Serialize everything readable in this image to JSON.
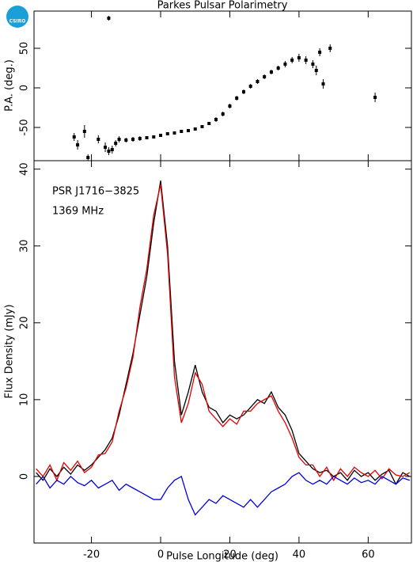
{
  "logo": "CSIRO",
  "chart_data": [
    {
      "type": "scatter",
      "title": "Parkes Pulsar Polarimetry",
      "ylabel": "P.A. (deg.)",
      "x": [
        -25,
        -24,
        -22,
        -21,
        -18,
        -16,
        -15,
        -15,
        -14,
        -13,
        -12,
        -10,
        -8,
        -6,
        -4,
        -2,
        0,
        2,
        4,
        6,
        8,
        10,
        12,
        14,
        16,
        18,
        20,
        22,
        24,
        26,
        28,
        30,
        32,
        34,
        36,
        38,
        40,
        42,
        44,
        45,
        46,
        47,
        49,
        62
      ],
      "y": [
        -62,
        -72,
        -55,
        -88,
        -65,
        -75,
        88,
        -80,
        -78,
        -70,
        -65,
        -66,
        -65,
        -64,
        -63,
        -62,
        -60,
        -58,
        -57,
        -55,
        -54,
        -52,
        -49,
        -45,
        -40,
        -33,
        -23,
        -13,
        -5,
        2,
        8,
        14,
        20,
        25,
        30,
        35,
        38,
        35,
        30,
        22,
        45,
        5,
        50,
        -12
      ],
      "errors": [
        5,
        6,
        8,
        4,
        5,
        6,
        3,
        5,
        5,
        4,
        4,
        3,
        3,
        3,
        2,
        2,
        2,
        2,
        2,
        2,
        2,
        2,
        2,
        2,
        3,
        3,
        3,
        3,
        3,
        3,
        3,
        3,
        3,
        3,
        4,
        4,
        5,
        5,
        5,
        6,
        5,
        6,
        5,
        6
      ],
      "color": "#000000",
      "xlim": [
        -36.6,
        72.5
      ],
      "xticks": [
        -20,
        0,
        20,
        40,
        60
      ],
      "ylim": [
        -92,
        97
      ],
      "yticks": [
        -50,
        0,
        50
      ]
    },
    {
      "type": "line",
      "xlabel": "Pulse Longitude (deg)",
      "ylabel": "Flux Density (mJy)",
      "annotations": [
        "PSR J1716−3825",
        "1369 MHz"
      ],
      "x": [
        -36,
        -34,
        -32,
        -30,
        -28,
        -26,
        -24,
        -22,
        -20,
        -18,
        -16,
        -14,
        -12,
        -10,
        -8,
        -6,
        -4,
        -2,
        0,
        2,
        4,
        6,
        8,
        10,
        12,
        14,
        16,
        18,
        20,
        22,
        24,
        26,
        28,
        30,
        32,
        34,
        36,
        38,
        40,
        42,
        44,
        46,
        48,
        50,
        52,
        54,
        56,
        58,
        60,
        62,
        64,
        66,
        68,
        70,
        72
      ],
      "series": [
        {
          "color": "#000000",
          "values": [
            0.5,
            -0.5,
            1,
            0,
            1.2,
            0.3,
            1.5,
            0.8,
            1.5,
            2.5,
            3.5,
            5,
            8,
            12,
            16,
            21,
            26,
            33,
            38.5,
            30,
            15,
            8,
            11,
            14.5,
            11,
            9,
            8.5,
            7,
            8,
            7.5,
            8,
            9,
            10,
            9.5,
            11,
            9,
            8,
            6,
            3,
            2,
            1,
            0.5,
            0.8,
            0,
            0.5,
            -0.5,
            0.8,
            0,
            0.5,
            -0.5,
            0.3,
            0.8,
            -1,
            0.5,
            0
          ]
        },
        {
          "color": "#e00000",
          "values": [
            1,
            0,
            1.5,
            -0.5,
            1.8,
            0.8,
            2,
            0.5,
            1.2,
            2.8,
            3,
            4.5,
            8.5,
            11.5,
            15.5,
            22,
            27,
            34,
            38,
            29,
            13,
            7,
            9.5,
            13.5,
            12,
            8.5,
            7.5,
            6.5,
            7.5,
            6.8,
            8.5,
            8.5,
            9.5,
            10,
            10.5,
            8.5,
            7,
            5,
            2.5,
            1.5,
            1.5,
            0,
            1.2,
            -0.5,
            1,
            0,
            1.2,
            0.5,
            0,
            0.8,
            -0.3,
            1,
            0.2,
            0,
            0.5
          ]
        },
        {
          "color": "#0000dd",
          "values": [
            -1,
            0,
            -1.5,
            -0.5,
            -1,
            0,
            -0.8,
            -1.2,
            -0.5,
            -1.5,
            -1,
            -0.5,
            -1.8,
            -1,
            -1.5,
            -2,
            -2.5,
            -3,
            -3,
            -1.5,
            -0.5,
            0,
            -3,
            -5,
            -4,
            -3,
            -3.5,
            -2.5,
            -3,
            -3.5,
            -4,
            -3,
            -4,
            -3,
            -2,
            -1.5,
            -1,
            0,
            0.5,
            -0.5,
            -1,
            -0.5,
            -1,
            0,
            -0.5,
            -1,
            -0.2,
            -0.8,
            -0.5,
            -1,
            0,
            -0.5,
            -1,
            -0.2,
            -0.5
          ]
        }
      ],
      "xlim": [
        -36.6,
        72.5
      ],
      "xticks": [
        -20,
        0,
        20,
        40,
        60
      ],
      "ylim": [
        -8.66,
        41.1
      ],
      "yticks": [
        0,
        10,
        20,
        30,
        40
      ]
    }
  ]
}
